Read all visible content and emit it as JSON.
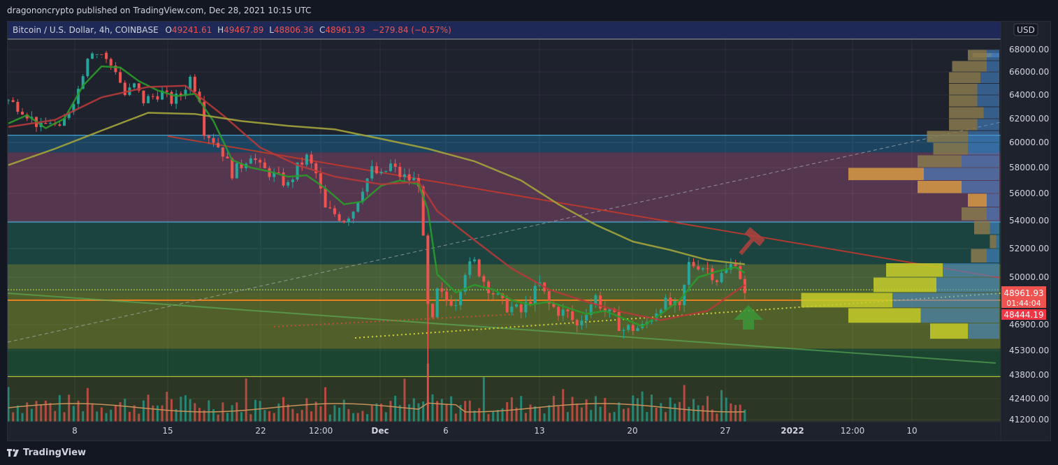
{
  "header": {
    "publisher": "dragononcrypto published on TradingView.com, Dec 28, 2021 10:15 UTC"
  },
  "legend": {
    "symbol": "Bitcoin / U.S. Dollar, 4h, COINBASE",
    "o_label": "O",
    "o_value": "49241.61",
    "h_label": "H",
    "h_value": "49467.89",
    "l_label": "L",
    "l_value": "48806.36",
    "c_label": "C",
    "c_value": "48961.93",
    "change": "−279.84 (−0.57%)"
  },
  "currency_button": "USD",
  "price_badges": {
    "last_price": "48961.93",
    "countdown": "01:44:04",
    "level_price": "48444.19"
  },
  "footer": {
    "brand": "TradingView"
  },
  "colors": {
    "up": "#26a69a",
    "down": "#ef5350",
    "ma_fast": "#2b9a2b",
    "ma_mid": "#b53a3a",
    "ma_slow": "#a4a43c",
    "volume_ma": "#c8915a"
  },
  "chart_data": {
    "type": "candlestick",
    "title": "",
    "xlabel": "",
    "ylabel": "",
    "y_ticks": [
      "68000.00",
      "66000.00",
      "64000.00",
      "62000.00",
      "60000.00",
      "58000.00",
      "56000.00",
      "54000.00",
      "52000.00",
      "50000.00",
      "46900.00",
      "45300.00",
      "43800.00",
      "42400.00",
      "41200.00"
    ],
    "x_ticks": [
      "8",
      "15",
      "22",
      "12:00",
      "Dec",
      "6",
      "13",
      "20",
      "27",
      "2022",
      "12:00",
      "10"
    ],
    "ylim": [
      41200,
      70000
    ],
    "close_path": [
      [
        0,
        63500
      ],
      [
        3,
        62800
      ],
      [
        5,
        62000
      ],
      [
        7,
        61200
      ],
      [
        9,
        61800
      ],
      [
        11,
        61000
      ],
      [
        13,
        62800
      ],
      [
        15,
        64500
      ],
      [
        17,
        67500
      ],
      [
        19,
        68500
      ],
      [
        21,
        67000
      ],
      [
        23,
        66200
      ],
      [
        25,
        64000
      ],
      [
        27,
        64800
      ],
      [
        29,
        63500
      ],
      [
        31,
        63900
      ],
      [
        33,
        64200
      ],
      [
        35,
        63500
      ],
      [
        37,
        64000
      ],
      [
        39,
        65500
      ],
      [
        41,
        63800
      ],
      [
        42,
        61000
      ],
      [
        44,
        60200
      ],
      [
        46,
        59200
      ],
      [
        48,
        57600
      ],
      [
        50,
        58200
      ],
      [
        52,
        59100
      ],
      [
        54,
        58000
      ],
      [
        56,
        57600
      ],
      [
        58,
        57200
      ],
      [
        60,
        56600
      ],
      [
        62,
        58000
      ],
      [
        64,
        58800
      ],
      [
        66,
        57500
      ],
      [
        68,
        54800
      ],
      [
        70,
        54500
      ],
      [
        72,
        54100
      ],
      [
        74,
        54800
      ],
      [
        76,
        56500
      ],
      [
        78,
        57800
      ],
      [
        80,
        57300
      ],
      [
        82,
        58200
      ],
      [
        84,
        57400
      ],
      [
        86,
        57100
      ],
      [
        88,
        56900
      ],
      [
        89,
        52500
      ],
      [
        90,
        48000
      ],
      [
        91,
        47000
      ],
      [
        92,
        49000
      ],
      [
        94,
        48500
      ],
      [
        96,
        48500
      ],
      [
        98,
        50500
      ],
      [
        100,
        51000
      ],
      [
        102,
        49800
      ],
      [
        104,
        49000
      ],
      [
        106,
        48200
      ],
      [
        108,
        48000
      ],
      [
        110,
        47700
      ],
      [
        112,
        48600
      ],
      [
        114,
        49500
      ],
      [
        116,
        48200
      ],
      [
        118,
        47800
      ],
      [
        120,
        47600
      ],
      [
        122,
        46800
      ],
      [
        124,
        47900
      ],
      [
        126,
        48700
      ],
      [
        128,
        47800
      ],
      [
        130,
        47300
      ],
      [
        132,
        46600
      ],
      [
        134,
        46700
      ],
      [
        136,
        46700
      ],
      [
        138,
        47400
      ],
      [
        140,
        48300
      ],
      [
        142,
        48200
      ],
      [
        144,
        47800
      ],
      [
        146,
        50900
      ],
      [
        148,
        50900
      ],
      [
        150,
        50600
      ],
      [
        152,
        49900
      ],
      [
        154,
        50400
      ],
      [
        156,
        51200
      ],
      [
        157,
        50100
      ],
      [
        158,
        48961.93
      ]
    ],
    "series": [
      {
        "name": "",
        "values": [
          [
            0,
            61600
          ],
          [
            4,
            62300
          ],
          [
            8,
            61200
          ],
          [
            12,
            62000
          ],
          [
            16,
            64800
          ],
          [
            20,
            66500
          ],
          [
            24,
            66400
          ],
          [
            28,
            65200
          ],
          [
            32,
            64400
          ],
          [
            36,
            63900
          ],
          [
            40,
            64100
          ],
          [
            44,
            61800
          ],
          [
            48,
            58600
          ],
          [
            52,
            58000
          ],
          [
            56,
            57700
          ],
          [
            60,
            57300
          ],
          [
            64,
            57400
          ],
          [
            68,
            56400
          ],
          [
            72,
            55200
          ],
          [
            76,
            55400
          ],
          [
            80,
            56600
          ],
          [
            84,
            57000
          ],
          [
            88,
            56700
          ],
          [
            90,
            54800
          ],
          [
            92,
            50200
          ],
          [
            96,
            49000
          ],
          [
            100,
            49500
          ],
          [
            104,
            49200
          ],
          [
            108,
            48500
          ],
          [
            112,
            48200
          ],
          [
            116,
            48400
          ],
          [
            120,
            48000
          ],
          [
            124,
            47600
          ],
          [
            128,
            47800
          ],
          [
            132,
            47300
          ],
          [
            136,
            46800
          ],
          [
            140,
            47600
          ],
          [
            144,
            48500
          ],
          [
            148,
            50000
          ],
          [
            152,
            50400
          ],
          [
            156,
            50700
          ],
          [
            158,
            50300
          ]
        ]
      },
      {
        "name": "",
        "values": [
          [
            0,
            61300
          ],
          [
            10,
            61900
          ],
          [
            20,
            63800
          ],
          [
            30,
            64700
          ],
          [
            38,
            64800
          ],
          [
            46,
            62300
          ],
          [
            54,
            59600
          ],
          [
            62,
            58200
          ],
          [
            70,
            57300
          ],
          [
            80,
            56700
          ],
          [
            88,
            56900
          ],
          [
            92,
            54700
          ],
          [
            100,
            52600
          ],
          [
            108,
            50600
          ],
          [
            116,
            49200
          ],
          [
            124,
            48400
          ],
          [
            132,
            47700
          ],
          [
            140,
            47200
          ],
          [
            150,
            47800
          ],
          [
            158,
            49500
          ]
        ]
      },
      {
        "name": "",
        "values": [
          [
            0,
            58200
          ],
          [
            10,
            59500
          ],
          [
            20,
            61000
          ],
          [
            30,
            62500
          ],
          [
            40,
            62400
          ],
          [
            50,
            61800
          ],
          [
            60,
            61400
          ],
          [
            70,
            61100
          ],
          [
            80,
            60300
          ],
          [
            90,
            59500
          ],
          [
            100,
            58500
          ],
          [
            110,
            57000
          ],
          [
            118,
            55200
          ],
          [
            126,
            53700
          ],
          [
            134,
            52500
          ],
          [
            142,
            51900
          ],
          [
            150,
            51200
          ],
          [
            158,
            50900
          ]
        ]
      }
    ],
    "zones": [
      {
        "from": 59200,
        "to": 60600,
        "color": "#1c4a6b"
      },
      {
        "from": 53900,
        "to": 59200,
        "color": "#5e3a55"
      },
      {
        "from": 50900,
        "to": 53900,
        "color": "#1b4a45"
      },
      {
        "from": 49000,
        "to": 50900,
        "color": "#4e6a3b"
      },
      {
        "from": 45400,
        "to": 49000,
        "color": "#5a6b2c"
      },
      {
        "from": 43700,
        "to": 45400,
        "color": "#1b4a33"
      }
    ],
    "horizontal_lines": [
      60600,
      53900,
      43700,
      48444.19
    ],
    "volume_profile": [
      {
        "price": 68500,
        "right": 12,
        "left": 30
      },
      {
        "price": 67500,
        "right": 20,
        "left": 30
      },
      {
        "price": 66500,
        "right": 20,
        "left": 55
      },
      {
        "price": 65500,
        "right": 30,
        "left": 50
      },
      {
        "price": 64500,
        "right": 35,
        "left": 45
      },
      {
        "price": 63500,
        "right": 35,
        "left": 45
      },
      {
        "price": 62500,
        "right": 25,
        "left": 55
      },
      {
        "price": 61500,
        "right": 35,
        "left": 45
      },
      {
        "price": 60500,
        "right": 50,
        "left": 65
      },
      {
        "price": 59500,
        "right": 50,
        "left": 55
      },
      {
        "price": 58500,
        "right": 60,
        "left": 70
      },
      {
        "price": 57500,
        "right": 120,
        "left": 120
      },
      {
        "price": 56500,
        "right": 60,
        "left": 70
      },
      {
        "price": 55500,
        "right": 20,
        "left": 30
      },
      {
        "price": 54500,
        "right": 20,
        "left": 40
      },
      {
        "price": 53500,
        "right": 15,
        "left": 25
      },
      {
        "price": 52500,
        "right": 5,
        "left": 10
      },
      {
        "price": 51500,
        "right": 20,
        "left": 25
      },
      {
        "price": 50500,
        "right": 90,
        "left": 90
      },
      {
        "price": 49500,
        "right": 100,
        "left": 100
      },
      {
        "price": 48500,
        "right": 170,
        "left": 145
      },
      {
        "price": 47500,
        "right": 125,
        "left": 115
      },
      {
        "price": 46500,
        "right": 50,
        "left": 60
      }
    ],
    "volume_bars_note": "volume histogram in lower pane with moving average"
  }
}
